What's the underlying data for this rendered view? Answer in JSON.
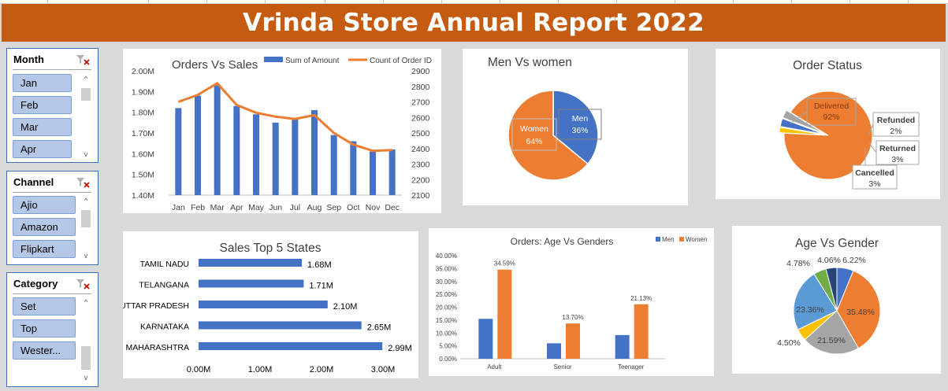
{
  "report": {
    "title": "Vrinda Store Annual Report 2022"
  },
  "slicers": [
    {
      "title": "Month",
      "items": [
        "Jan",
        "Feb",
        "Mar",
        "Apr"
      ]
    },
    {
      "title": "Channel",
      "items": [
        "Ajio",
        "Amazon",
        "Flipkart"
      ]
    },
    {
      "title": "Category",
      "items": [
        "Set",
        "Top",
        "Wester..."
      ]
    }
  ],
  "chart_data": [
    {
      "id": "orders_vs_sales",
      "type": "bar+line",
      "title": "Orders Vs Sales",
      "categories": [
        "Jan",
        "Feb",
        "Mar",
        "Apr",
        "May",
        "Jun",
        "Jul",
        "Aug",
        "Sep",
        "Oct",
        "Nov",
        "Dec"
      ],
      "series": [
        {
          "name": "Sum of Amount",
          "axis": "left",
          "color": "#4472c4",
          "values": [
            1.82,
            1.88,
            1.93,
            1.83,
            1.79,
            1.75,
            1.77,
            1.81,
            1.69,
            1.66,
            1.61,
            1.62
          ]
        },
        {
          "name": "Count of Order ID",
          "axis": "right",
          "color": "#ed7d31",
          "values": [
            2700,
            2745,
            2820,
            2680,
            2630,
            2605,
            2590,
            2615,
            2500,
            2425,
            2385,
            2390
          ]
        }
      ],
      "y_left": {
        "range": [
          1.4,
          2.0
        ],
        "ticks": [
          "1.40M",
          "1.50M",
          "1.60M",
          "1.70M",
          "1.80M",
          "1.90M",
          "2.00M"
        ]
      },
      "y_right": {
        "range": [
          2100,
          2900
        ],
        "ticks": [
          "2100",
          "2200",
          "2300",
          "2400",
          "2500",
          "2600",
          "2700",
          "2800",
          "2900"
        ]
      },
      "legend": "top-right"
    },
    {
      "id": "men_vs_women",
      "type": "pie",
      "title": "Men Vs women",
      "slices": [
        {
          "label": "Men",
          "value": 36,
          "display": "36%",
          "color": "#4472c4"
        },
        {
          "label": "Women",
          "value": 64,
          "display": "64%",
          "color": "#ed7d31"
        }
      ]
    },
    {
      "id": "order_status",
      "type": "pie",
      "title": "Order Status",
      "slices": [
        {
          "label": "Delivered",
          "value": 92,
          "display": "92%",
          "color": "#ed7d31"
        },
        {
          "label": "Refunded",
          "value": 2,
          "display": "2%",
          "color": "#ffc000"
        },
        {
          "label": "Returned",
          "value": 3,
          "display": "3%",
          "color": "#4472c4"
        },
        {
          "label": "Cancelled",
          "value": 3,
          "display": "3%",
          "color": "#a5a5a5"
        }
      ]
    },
    {
      "id": "top5_states",
      "type": "bar",
      "orientation": "horizontal",
      "title": "Sales Top 5 States",
      "categories": [
        "TAMIL NADU",
        "TELANGANA",
        "UTTAR PRADESH",
        "KARNATAKA",
        "MAHARASHTRA"
      ],
      "values": [
        1.68,
        1.71,
        2.1,
        2.65,
        2.99
      ],
      "value_labels": [
        "1.68M",
        "1.71M",
        "2.10M",
        "2.65M",
        "2.99M"
      ],
      "xlim": [
        0,
        3
      ],
      "x_ticks": [
        "0.00M",
        "1.00M",
        "2.00M",
        "3.00M"
      ],
      "color": "#4472c4"
    },
    {
      "id": "orders_age_gender",
      "type": "bar",
      "title": "Orders: Age Vs Genders",
      "categories": [
        "Adult",
        "Senior",
        "Teenager"
      ],
      "series": [
        {
          "name": "Men",
          "color": "#4472c4",
          "values": [
            15.5,
            6.0,
            9.2
          ]
        },
        {
          "name": "Women",
          "color": "#ed7d31",
          "values": [
            34.59,
            13.7,
            21.13
          ],
          "labels": [
            "34.59%",
            "13.70%",
            "21.13%"
          ]
        }
      ],
      "ylim": [
        0,
        40
      ],
      "y_ticks": [
        "0.00%",
        "5.00%",
        "10.00%",
        "15.00%",
        "20.00%",
        "25.00%",
        "30.00%",
        "35.00%",
        "40.00%"
      ],
      "legend": "top-right"
    },
    {
      "id": "age_vs_gender",
      "type": "pie",
      "title": "Age Vs Gender",
      "slices": [
        {
          "value": 6.22,
          "display": "6.22%",
          "color": "#4472c4"
        },
        {
          "value": 35.48,
          "display": "35.48%",
          "color": "#ed7d31"
        },
        {
          "value": 21.59,
          "display": "21.59%",
          "color": "#a5a5a5"
        },
        {
          "value": 4.5,
          "display": "4.50%",
          "color": "#ffc000"
        },
        {
          "value": 23.36,
          "display": "23.36%",
          "color": "#5b9bd5"
        },
        {
          "value": 4.78,
          "display": "4.78%",
          "color": "#70ad47"
        },
        {
          "value": 4.06,
          "display": "4.06%",
          "color": "#264478"
        }
      ]
    }
  ]
}
